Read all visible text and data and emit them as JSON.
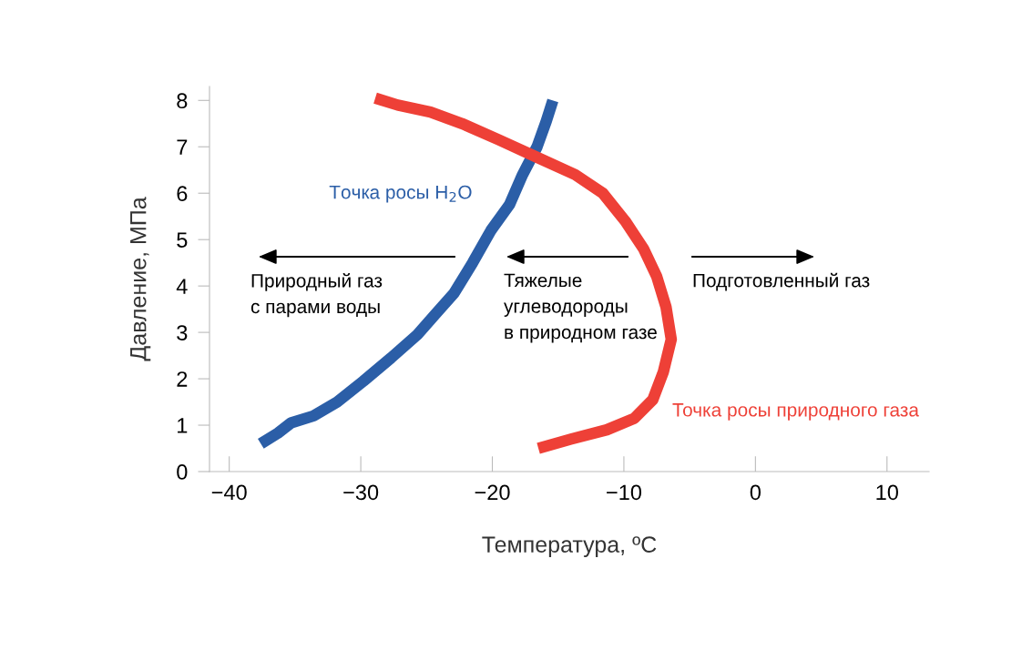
{
  "chart_data": {
    "type": "line",
    "xlabel": "Температура, ºС",
    "ylabel": "Давление, МПа",
    "xlim": [
      -41.5,
      13.2
    ],
    "ylim": [
      0,
      8.3
    ],
    "xticks": [
      {
        "value": -40,
        "label": "−40"
      },
      {
        "value": -30,
        "label": "−30"
      },
      {
        "value": -20,
        "label": "−20"
      },
      {
        "value": -10,
        "label": "−10"
      },
      0,
      10
    ],
    "yticks": [
      0,
      1,
      2,
      3,
      4,
      5,
      6,
      7,
      8
    ],
    "grid": false,
    "legend": false,
    "marker": "none",
    "line_style": "solid",
    "series": [
      {
        "name": "Точка росы H$_{2}$O",
        "color": "#2b5ea7",
        "x": [
          -37.6,
          -36.3,
          -35.3,
          -33.6,
          -31.8,
          -29.8,
          -27.7,
          -25.7,
          -24.3,
          -22.9,
          -21.5,
          -20.1,
          -18.7,
          -17.7,
          -16.6,
          -15.9,
          -15.4
        ],
        "values": [
          0.6,
          0.83,
          1.05,
          1.2,
          1.5,
          1.95,
          2.45,
          2.95,
          3.4,
          3.85,
          4.5,
          5.2,
          5.75,
          6.4,
          7.0,
          7.55,
          8.0
        ]
      },
      {
        "name": "Точка росы природного газа",
        "color": "#ee4037",
        "x": [
          -28.9,
          -27.2,
          -24.7,
          -22.3,
          -19.5,
          -16.8,
          -13.7,
          -11.6,
          -9.9,
          -8.5,
          -7.5,
          -6.8,
          -6.4,
          -7.0,
          -7.8,
          -9.2,
          -11.3,
          -14.0,
          -16.5
        ],
        "values": [
          8.05,
          7.9,
          7.75,
          7.5,
          7.15,
          6.8,
          6.4,
          6.0,
          5.4,
          4.8,
          4.2,
          3.55,
          2.85,
          2.15,
          1.55,
          1.15,
          0.9,
          0.7,
          0.5
        ]
      }
    ],
    "annotations": [
      "Природный газ\nс парами воды",
      "Тяжелые\nуглеводороды\nв природном газе",
      "Подготовленный газ"
    ]
  }
}
